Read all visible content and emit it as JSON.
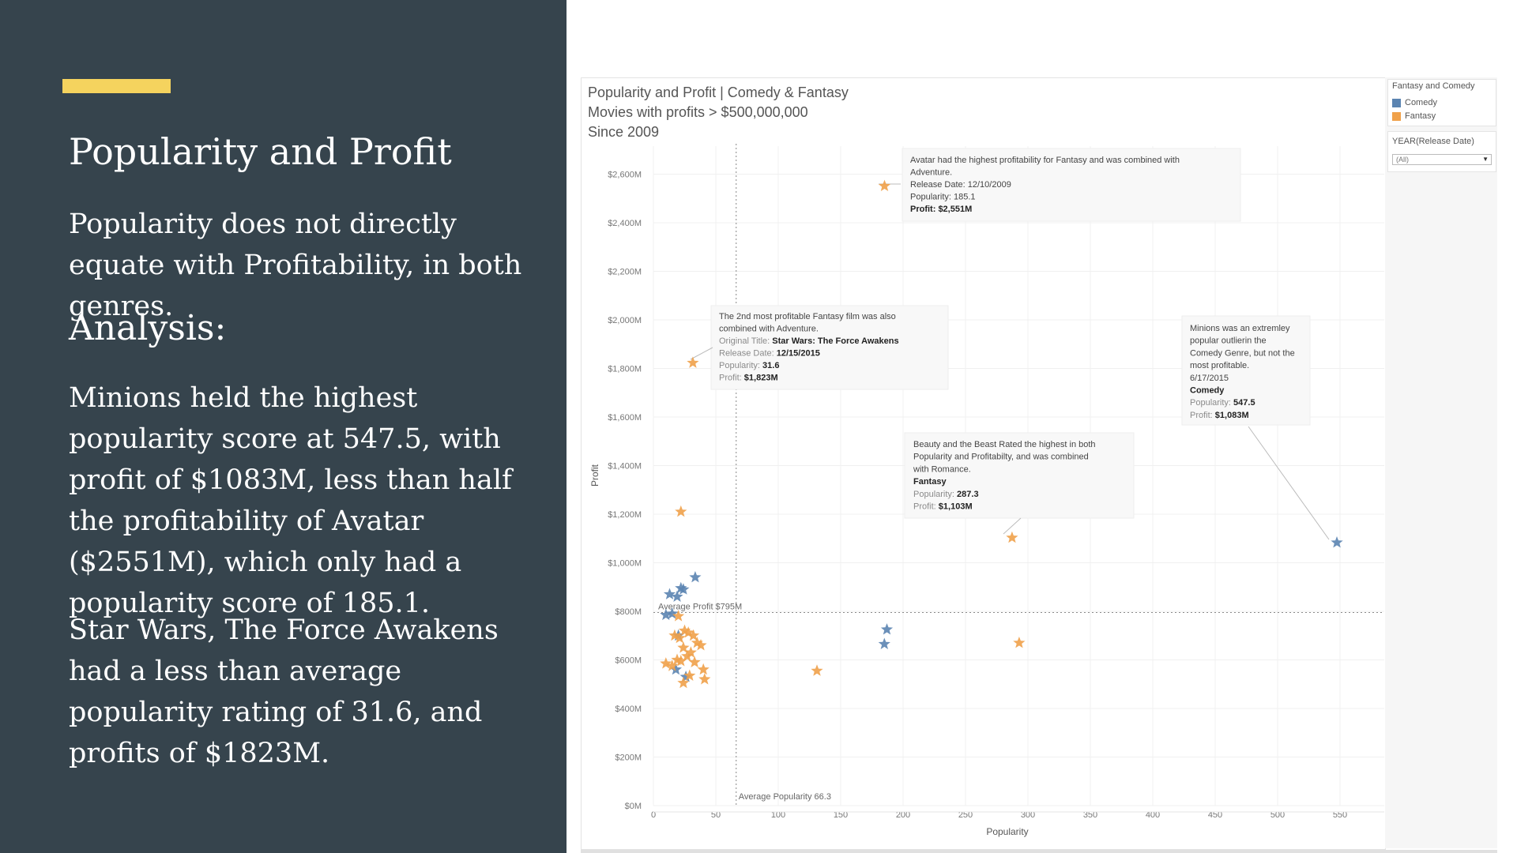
{
  "left_panel": {
    "title": "Popularity and Profit",
    "intro": "Popularity does not directly equate with Profitability, in both genres.",
    "analysis_heading": "Analysis:",
    "paragraph1": "Minions held the highest popularity score at 547.5, with profit of $1083M, less than half the profitability of Avatar ($2551M), which only had a popularity score of 185.1.",
    "paragraph2": "Star Wars, The Force Awakens had a less than average popularity rating of 31.6, and profits of $1823M."
  },
  "chart_title": {
    "line1": "Popularity and Profit | Comedy & Fantasy",
    "line2": "Movies with profits > $500,000,000",
    "line3": "Since 2009"
  },
  "legend": {
    "title": "Fantasy and Comedy",
    "items": [
      {
        "label": "Comedy",
        "color": "#5b84b1"
      },
      {
        "label": "Fantasy",
        "color": "#f0a14a"
      }
    ]
  },
  "filter": {
    "title": "YEAR(Release Date)",
    "value": "(All)"
  },
  "chart_data": {
    "type": "scatter",
    "xlabel": "Popularity",
    "ylabel": "Profit",
    "xlim": [
      0,
      575
    ],
    "ylim": [
      0,
      2700
    ],
    "x_ticks": [
      "0",
      "50",
      "100",
      "150",
      "200",
      "250",
      "300",
      "350",
      "400",
      "450",
      "500",
      "550"
    ],
    "y_ticks": [
      "$0M",
      "$200M",
      "$400M",
      "$600M",
      "$800M",
      "$1,000M",
      "$1,200M",
      "$1,400M",
      "$1,600M",
      "$1,800M",
      "$2,000M",
      "$2,200M",
      "$2,400M",
      "$2,600M"
    ],
    "grid": true,
    "reference_lines": [
      {
        "axis": "y",
        "value": 795,
        "label": "Average Profit $795M"
      },
      {
        "axis": "x",
        "value": 66.3,
        "label": "Average Popularity 66.3"
      }
    ],
    "series": [
      {
        "name": "Comedy",
        "color": "#5b84b1",
        "points": [
          [
            33.5,
            940
          ],
          [
            22,
            895
          ],
          [
            24,
            890
          ],
          [
            13,
            870
          ],
          [
            19,
            860
          ],
          [
            10,
            785
          ],
          [
            15,
            790
          ],
          [
            20,
            700
          ],
          [
            18,
            560
          ],
          [
            26,
            530
          ],
          [
            187,
            725
          ],
          [
            185,
            665
          ],
          [
            547.5,
            1083
          ]
        ]
      },
      {
        "name": "Fantasy",
        "color": "#f0a14a",
        "points": [
          [
            185.1,
            2551
          ],
          [
            31.6,
            1823
          ],
          [
            22,
            1210
          ],
          [
            287.3,
            1103
          ],
          [
            293,
            670
          ],
          [
            131,
            555
          ],
          [
            20,
            780
          ],
          [
            25,
            720
          ],
          [
            17,
            700
          ],
          [
            21,
            690
          ],
          [
            28,
            712
          ],
          [
            32,
            700
          ],
          [
            35,
            670
          ],
          [
            38,
            660
          ],
          [
            24,
            650
          ],
          [
            30,
            630
          ],
          [
            27,
            615
          ],
          [
            19,
            600
          ],
          [
            22,
            595
          ],
          [
            33,
            590
          ],
          [
            10,
            585
          ],
          [
            15,
            575
          ],
          [
            40,
            560
          ],
          [
            29,
            535
          ],
          [
            41,
            520
          ],
          [
            24,
            505
          ]
        ]
      }
    ],
    "annotations": [
      {
        "lines": [
          {
            "text": "Avatar had the highest profitability for Fantasy and was combined with",
            "bold": false
          },
          {
            "text": "Adventure.",
            "bold": false
          },
          {
            "text": "Release Date: 12/10/2009",
            "bold": false
          },
          {
            "text": "Popularity: 185.1",
            "bold": false
          },
          {
            "text": "Profit: $2,551M",
            "bold": true
          }
        ]
      },
      {
        "lines": [
          {
            "text": "The 2nd most profitable Fantasy film was also",
            "bold": false
          },
          {
            "text": "combined with Adventure.",
            "bold": false
          },
          {
            "text": "Original Title: ",
            "bold": false,
            "value": "Star Wars: The Force Awakens"
          },
          {
            "text": "Release Date: ",
            "bold": false,
            "value": "12/15/2015"
          },
          {
            "text": "Popularity: ",
            "bold": false,
            "value": "31.6"
          },
          {
            "text": "Profit: ",
            "bold": false,
            "value": "$1,823M"
          }
        ]
      },
      {
        "lines": [
          {
            "text": "Minions was an extremley",
            "bold": false
          },
          {
            "text": "popular outlierin the",
            "bold": false
          },
          {
            "text": "Comedy Genre, but not the",
            "bold": false
          },
          {
            "text": "most profitable.",
            "bold": false
          },
          {
            "text": "6/17/2015",
            "bold": false
          },
          {
            "text": "Comedy",
            "bold": true
          },
          {
            "text": "Popularity: ",
            "bold": false,
            "value": "547.5"
          },
          {
            "text": "Profit: ",
            "bold": false,
            "value": "$1,083M"
          }
        ]
      },
      {
        "lines": [
          {
            "text": "Beauty and the Beast Rated the highest in both",
            "bold": false
          },
          {
            "text": "Popularity and Profitabilty, and was combined",
            "bold": false
          },
          {
            "text": "with Romance.",
            "bold": false
          },
          {
            "text": "Fantasy",
            "bold": true
          },
          {
            "text": "Popularity: ",
            "bold": false,
            "value": "287.3"
          },
          {
            "text": "Profit: ",
            "bold": false,
            "value": "$1,103M"
          }
        ]
      }
    ]
  }
}
